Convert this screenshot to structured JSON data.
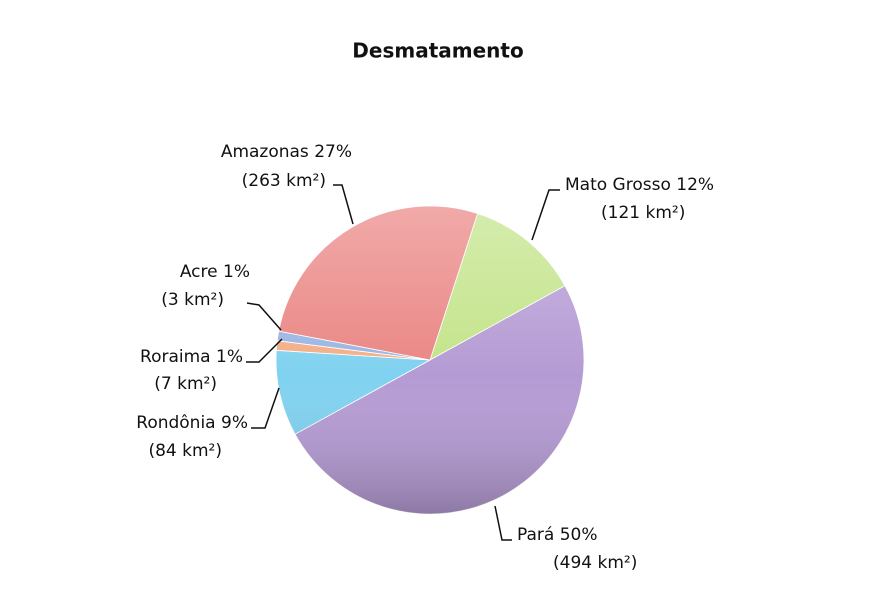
{
  "chart_data": {
    "type": "pie",
    "title": "Desmatamento",
    "categories": [
      "Mato Grosso",
      "Pará",
      "Rondônia",
      "Roraima",
      "Acre",
      "Amazonas"
    ],
    "values": [
      12,
      50,
      9,
      1,
      1,
      27
    ],
    "value_labels": [
      "12%",
      "50%",
      "9%",
      "1%",
      "1%",
      "27%"
    ],
    "areas": [
      121,
      494,
      84,
      7,
      3,
      263
    ],
    "area_labels": [
      "(121 km²)",
      "(494 km²)",
      "(84 km²)",
      "(7 km²)",
      "(3 km²)",
      "(263 km²)"
    ],
    "colors": [
      "#c3e48a",
      "#b59bd4",
      "#80d2f0",
      "#f4ae86",
      "#9bb5e3",
      "#ea8684"
    ]
  }
}
